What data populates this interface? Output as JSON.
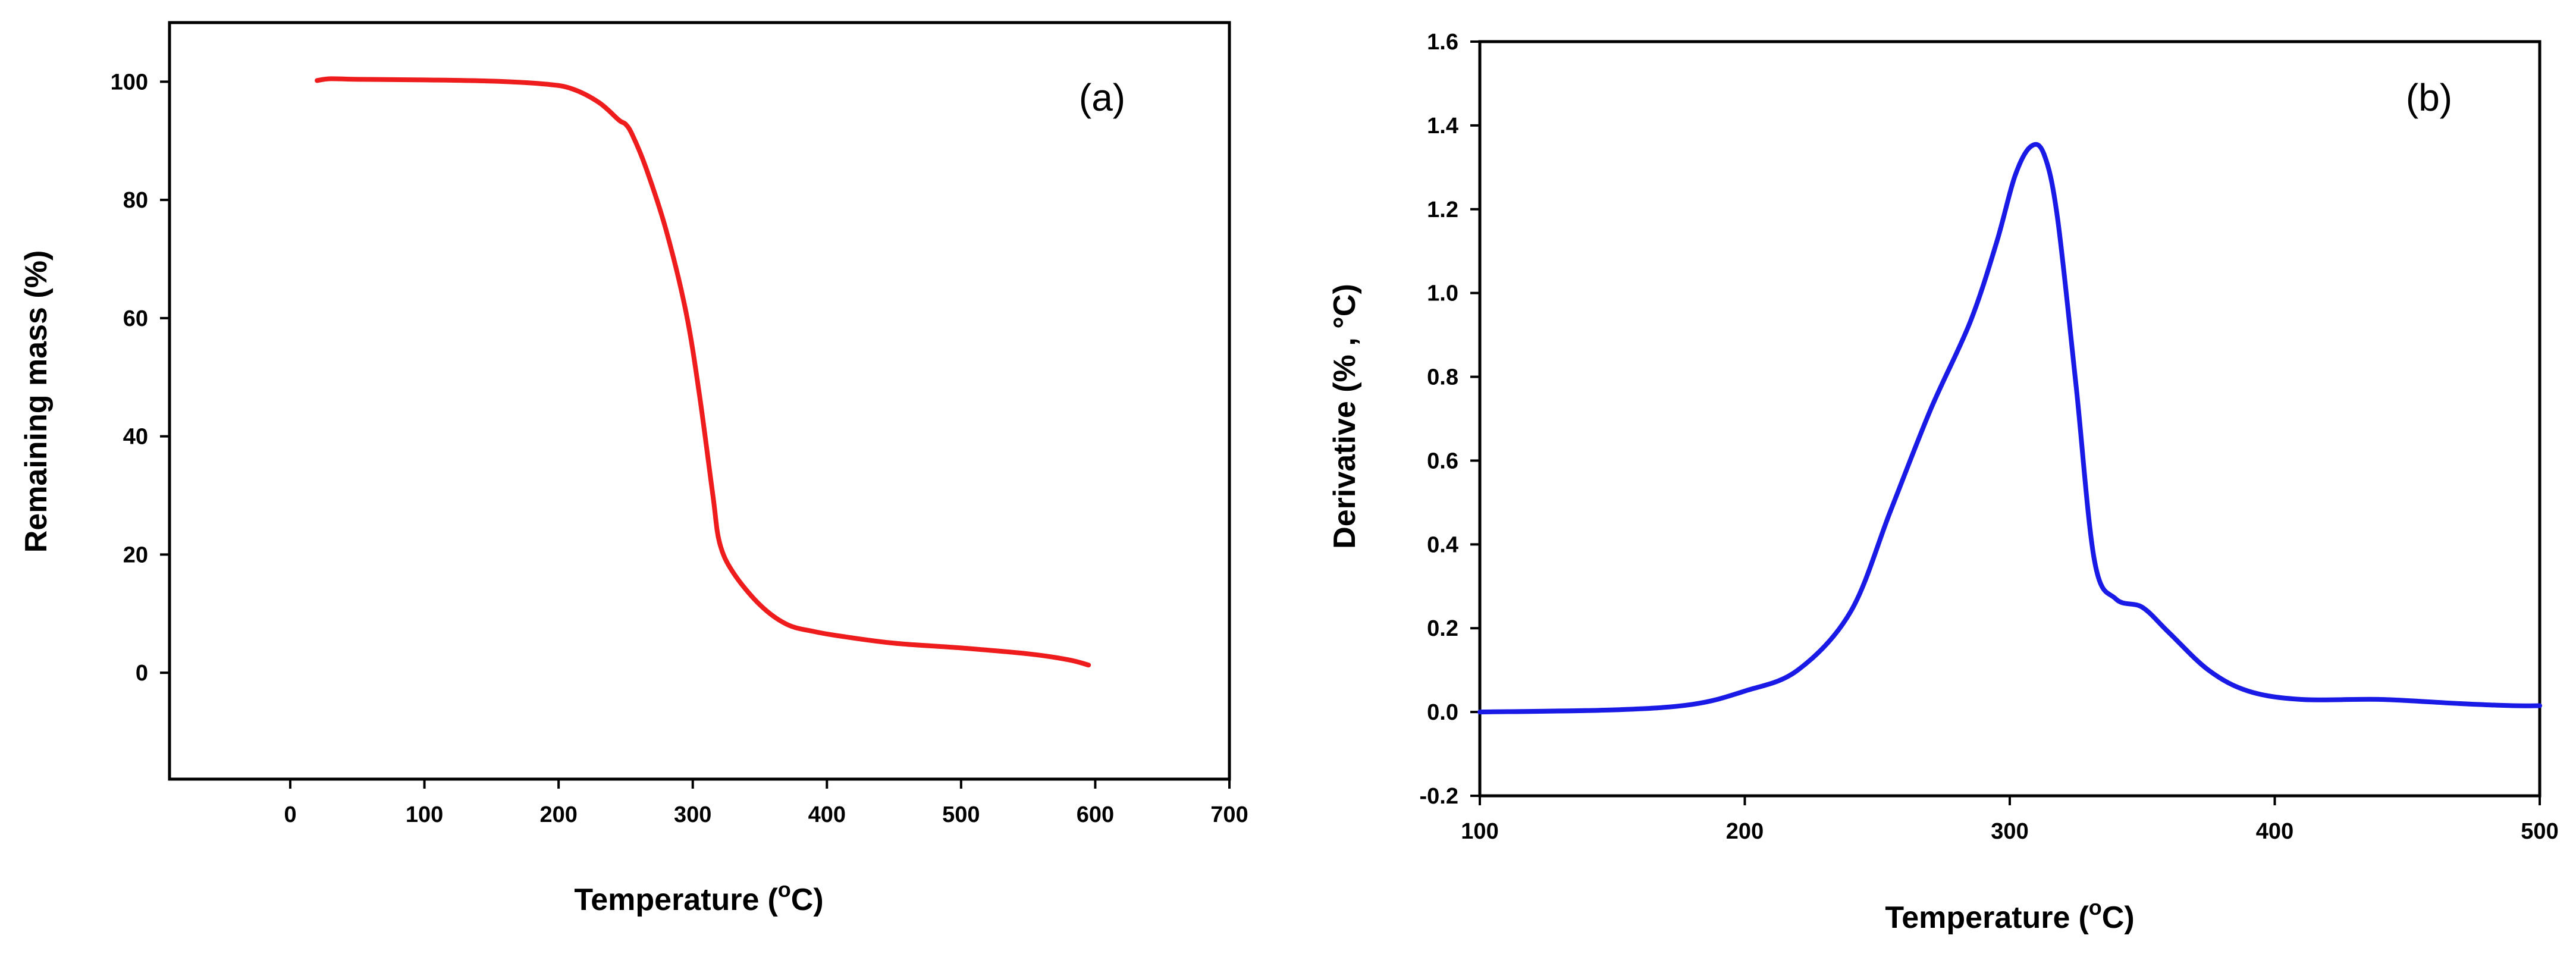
{
  "chart_data": [
    {
      "type": "line",
      "panel_label": "(a)",
      "xlabel": "Temperature",
      "xlabel_unit_base": "(",
      "xlabel_unit_sup": "o",
      "xlabel_unit_tail": "C)",
      "ylabel": "Remaining mass (%)",
      "xlim": [
        -90,
        700
      ],
      "ylim": [
        -18,
        110
      ],
      "xticks": [
        0,
        100,
        200,
        300,
        400,
        500,
        600,
        700
      ],
      "yticks": [
        0,
        20,
        40,
        60,
        80,
        100
      ],
      "color": "#ee1c1c",
      "series": [
        {
          "name": "Remaining mass",
          "x": [
            20,
            30,
            50,
            100,
            150,
            190,
            210,
            230,
            245,
            250,
            255,
            265,
            280,
            295,
            305,
            315,
            320,
            330,
            350,
            370,
            390,
            410,
            450,
            500,
            550,
            580,
            595
          ],
          "y": [
            100.2,
            100.5,
            100.4,
            100.3,
            100.1,
            99.6,
            98.8,
            96.5,
            93.5,
            92.8,
            91.0,
            85.5,
            75.0,
            61.0,
            47.0,
            30.0,
            22.0,
            17.0,
            11.5,
            8.2,
            7.0,
            6.2,
            5.0,
            4.2,
            3.2,
            2.2,
            1.3
          ]
        }
      ]
    },
    {
      "type": "line",
      "panel_label": "(b)",
      "xlabel": "Temperature",
      "xlabel_unit_base": "(",
      "xlabel_unit_sup": "o",
      "xlabel_unit_tail": "C)",
      "ylabel": "Derivative (% , °C)",
      "xlim": [
        100,
        500
      ],
      "ylim": [
        -0.2,
        1.6
      ],
      "xticks": [
        100,
        200,
        300,
        400,
        500
      ],
      "yticks": [
        -0.2,
        0.0,
        0.2,
        0.4,
        0.6,
        0.8,
        1.0,
        1.2,
        1.4,
        1.6
      ],
      "ytick_labels": [
        "-0.2",
        "0.0",
        "0.2",
        "0.4",
        "0.6",
        "0.8",
        "1.0",
        "1.2",
        "1.4",
        "1.6"
      ],
      "color": "#1a1ae6",
      "series": [
        {
          "name": "Derivative",
          "x": [
            100,
            150,
            180,
            200,
            220,
            240,
            255,
            270,
            285,
            295,
            302,
            308,
            313,
            318,
            325,
            332,
            340,
            350,
            360,
            375,
            390,
            410,
            440,
            470,
            490,
            500
          ],
          "y": [
            0.0,
            0.005,
            0.018,
            0.05,
            0.1,
            0.24,
            0.48,
            0.72,
            0.93,
            1.12,
            1.28,
            1.35,
            1.33,
            1.18,
            0.78,
            0.36,
            0.27,
            0.25,
            0.19,
            0.1,
            0.05,
            0.03,
            0.03,
            0.02,
            0.015,
            0.015
          ]
        }
      ]
    }
  ]
}
